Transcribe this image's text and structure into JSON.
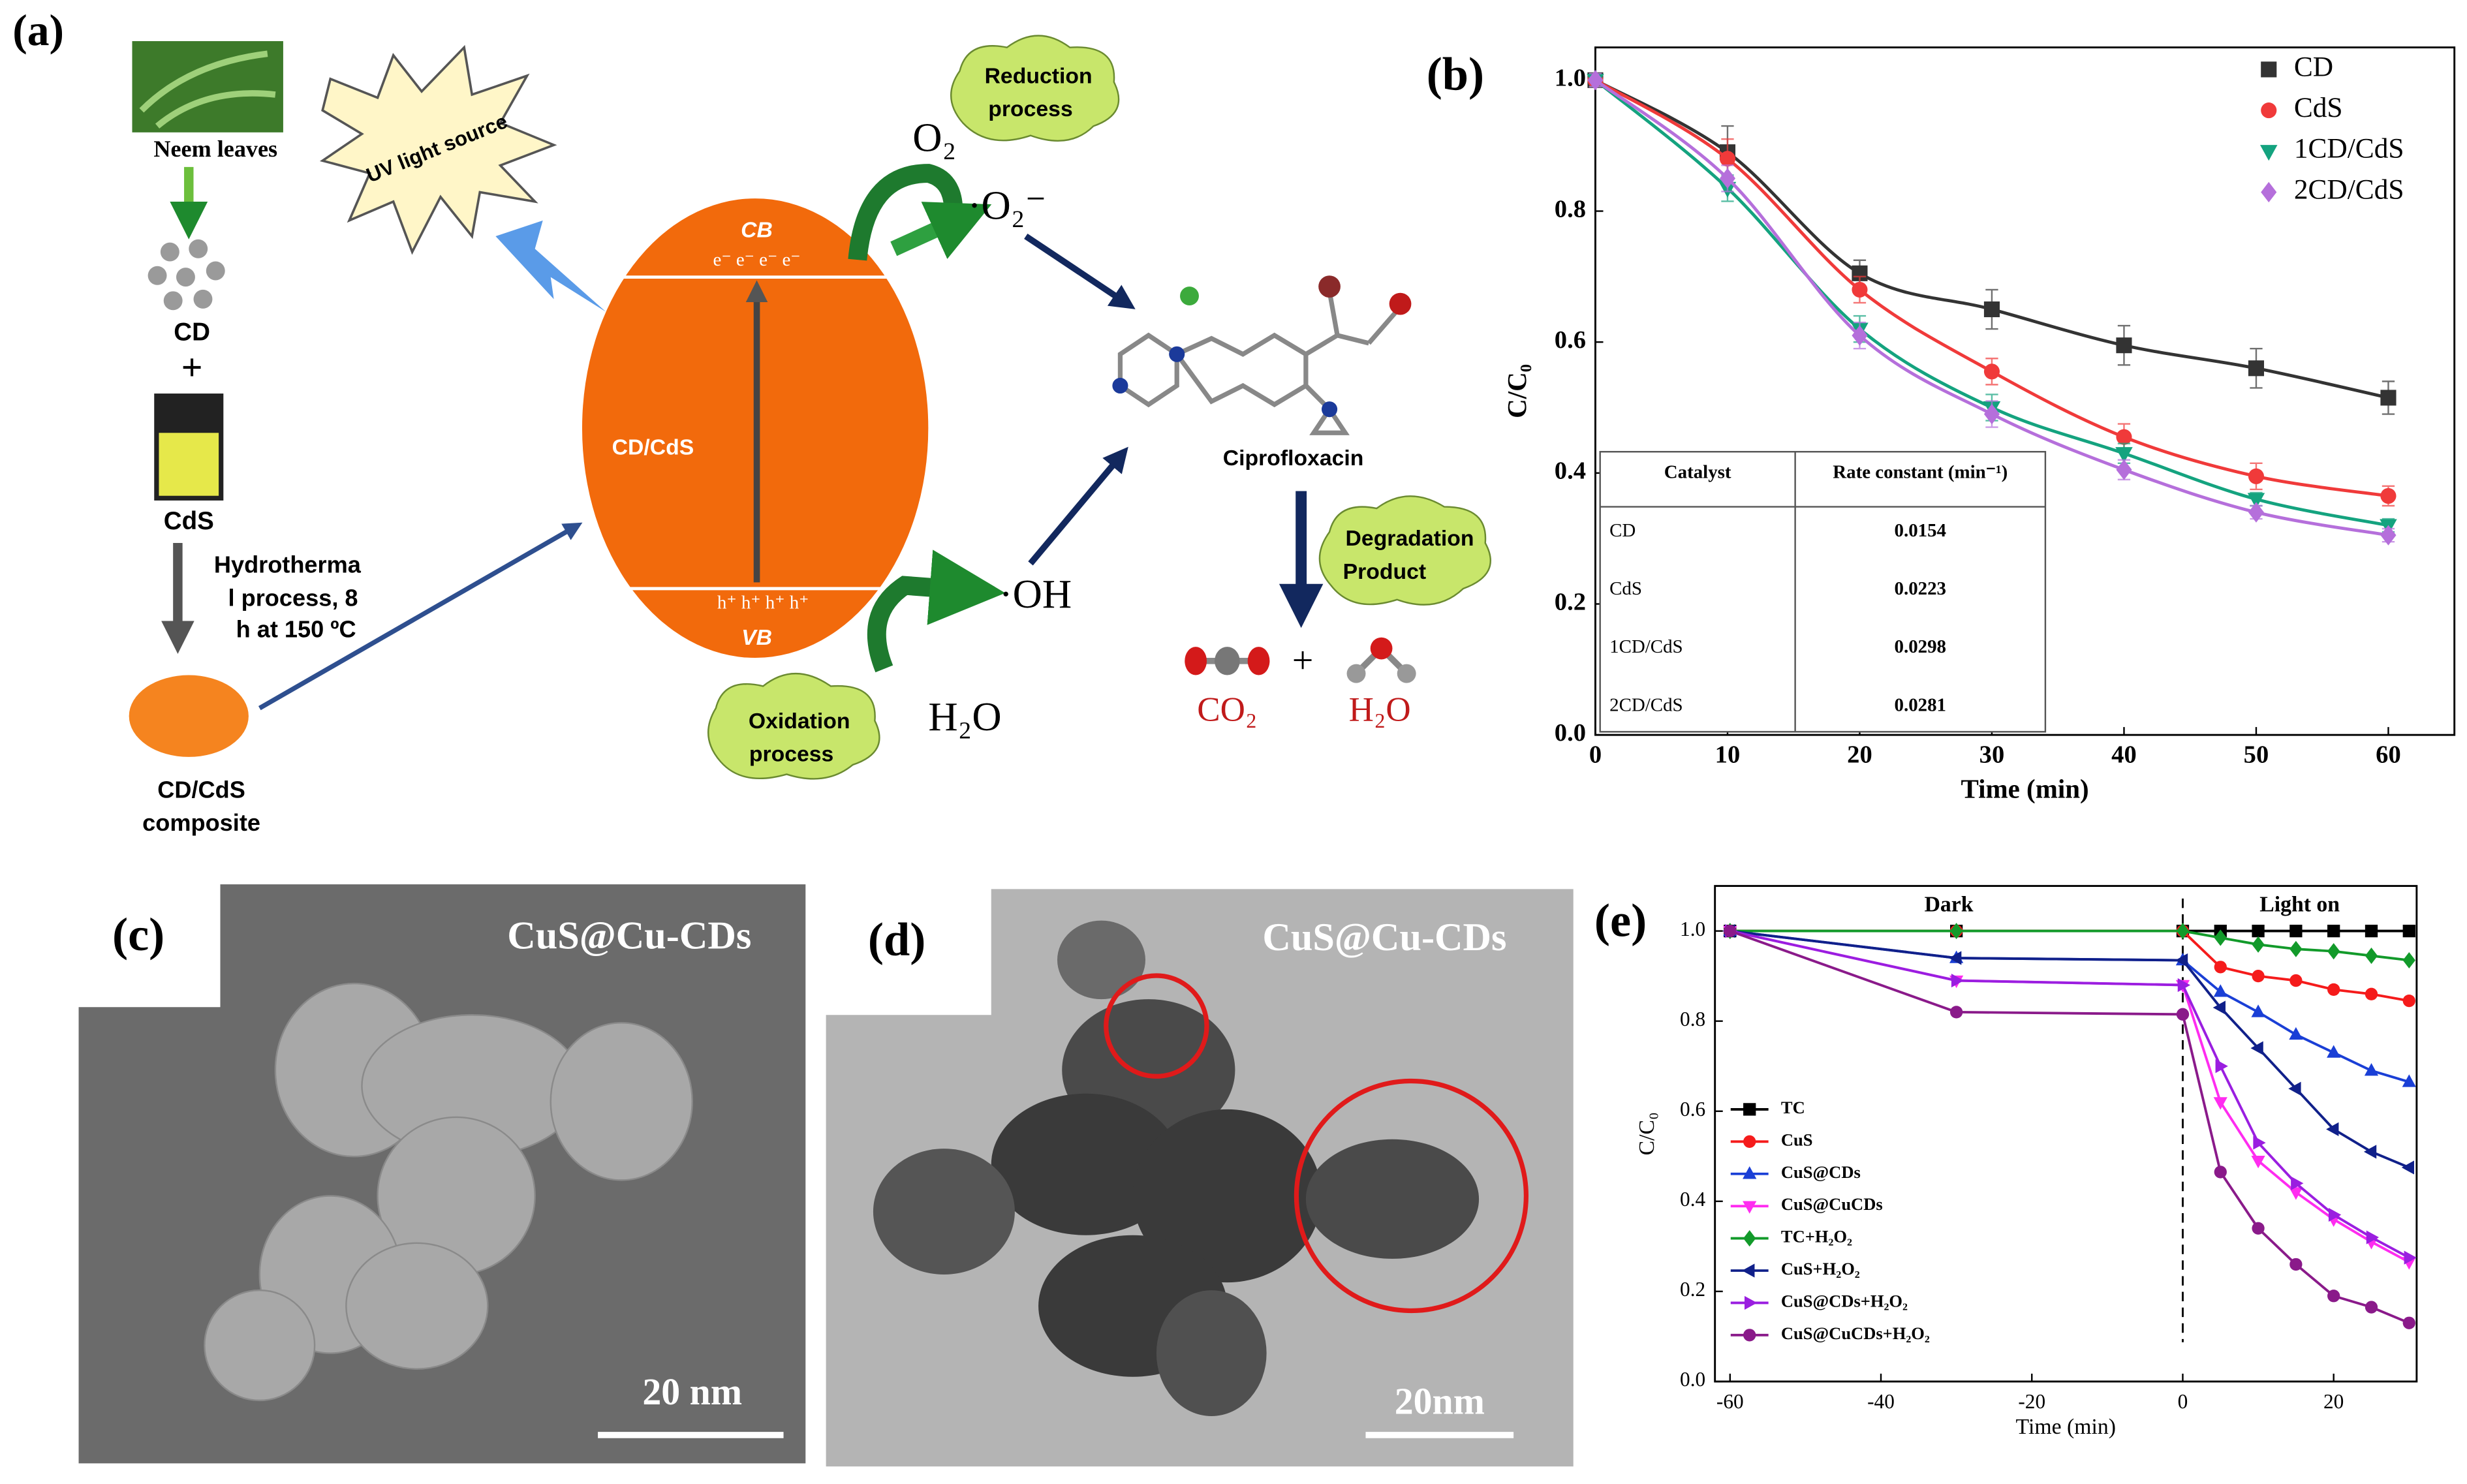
{
  "panel_a": {
    "label": "(a)",
    "neem": "Neem leaves",
    "uv": "UV light source",
    "cd": "CD",
    "plus1": "+",
    "cds": "CdS",
    "hydro": [
      "Hydrotherma",
      "l process, 8",
      "h at 150 ºC"
    ],
    "composite": [
      "CD/CdS",
      "composite"
    ],
    "cb": "CB",
    "electrons": "e⁻ e⁻ e⁻ e⁻",
    "core": "CD/CdS",
    "holes": "h⁺ h⁺ h⁺ h⁺",
    "vb": "VB",
    "o2": "O₂",
    "superoxide": "·O₂⁻",
    "oh": "·OH",
    "h2o": "H₂O",
    "reduction": [
      "Reduction",
      "process"
    ],
    "oxidation": [
      "Oxidation",
      "process"
    ],
    "cipro": "Ciprofloxacin",
    "degradation": [
      "Degradation",
      "Product"
    ],
    "co2": "CO₂",
    "plus2": "+",
    "h2o_product": "H₂O"
  },
  "panel_c": {
    "label": "(c)",
    "title": "CuS@Cu-CDs",
    "scale": "20 nm"
  },
  "panel_d": {
    "label": "(d)",
    "title": "CuS@Cu-CDs",
    "scale": "20nm"
  },
  "chart_data": [
    {
      "type": "scatter",
      "panel": "(b)",
      "xlabel": "Time (min)",
      "ylabel": "C/C₀",
      "line": "smooth",
      "legend": "upper right",
      "x": [
        0,
        10,
        20,
        30,
        40,
        50,
        60
      ],
      "xlim": [
        0,
        65
      ],
      "xticks": [
        0,
        10,
        20,
        30,
        40,
        50,
        60
      ],
      "ylim": [
        0,
        1.05
      ],
      "yticks": [
        {
          "value": 0,
          "label": "0.0"
        },
        {
          "value": 0.2,
          "label": "0.2"
        },
        {
          "value": 0.4,
          "label": "0.4"
        },
        {
          "value": 0.6,
          "label": "0.6"
        },
        {
          "value": 0.8,
          "label": "0.8"
        },
        {
          "value": 1,
          "label": "1.0"
        }
      ],
      "series": [
        {
          "name": "CD",
          "color": "#333333",
          "marker": "square",
          "values": [
            1.0,
            0.89,
            0.705,
            0.65,
            0.595,
            0.56,
            0.515
          ],
          "errors": [
            0.01,
            0.04,
            0.02,
            0.03,
            0.03,
            0.03,
            0.025
          ]
        },
        {
          "name": "CdS",
          "color": "#f03a3a",
          "marker": "circle",
          "values": [
            1.0,
            0.88,
            0.68,
            0.555,
            0.455,
            0.395,
            0.365
          ],
          "errors": [
            0.01,
            0.03,
            0.02,
            0.02,
            0.02,
            0.02,
            0.015
          ]
        },
        {
          "name": "1CD/CdS",
          "color": "#14a37f",
          "marker": "triangle-down",
          "values": [
            1.0,
            0.835,
            0.62,
            0.5,
            0.43,
            0.36,
            0.32
          ],
          "errors": [
            0.01,
            0.02,
            0.02,
            0.02,
            0.015,
            0.01,
            0.01
          ]
        },
        {
          "name": "2CD/CdS",
          "color": "#b56fdb",
          "marker": "diamond",
          "values": [
            1.0,
            0.85,
            0.61,
            0.49,
            0.405,
            0.34,
            0.305
          ],
          "errors": [
            0.01,
            0.02,
            0.02,
            0.02,
            0.015,
            0.01,
            0.01
          ]
        }
      ],
      "table": {
        "columns": [
          "Catalyst",
          "Rate constant (min⁻¹)"
        ],
        "rows": [
          [
            "CD",
            0.0154
          ],
          [
            "CdS",
            0.0223
          ],
          [
            "1CD/CdS",
            0.0298
          ],
          [
            "2CD/CdS",
            0.0281
          ]
        ]
      }
    },
    {
      "type": "line",
      "panel": "(e)",
      "xlabel": "Time (min)",
      "ylabel": "C/C₀",
      "line": "straight",
      "legend": "center left",
      "annotations": [
        "Dark",
        "Light on"
      ],
      "x": [
        -60,
        -30,
        0,
        5,
        10,
        15,
        20,
        25,
        30
      ],
      "xlim": [
        -62,
        31
      ],
      "xticks": [
        -60,
        -40,
        -20,
        0,
        20
      ],
      "ylim": [
        0,
        1.1
      ],
      "yticks": [
        {
          "value": 0,
          "label": "0.0"
        },
        {
          "value": 0.2,
          "label": "0.2"
        },
        {
          "value": 0.4,
          "label": "0.4"
        },
        {
          "value": 0.6,
          "label": "0.6"
        },
        {
          "value": 0.8,
          "label": "0.8"
        },
        {
          "value": 1,
          "label": "1.0"
        }
      ],
      "series": [
        {
          "name": "TC",
          "color": "#000000",
          "marker": "square",
          "values": [
            1,
            1,
            1,
            1,
            1,
            1,
            1,
            1,
            1
          ]
        },
        {
          "name": "CuS",
          "color": "#f51b1b",
          "marker": "circle",
          "values": [
            1,
            1,
            1,
            0.92,
            0.9,
            0.89,
            0.87,
            0.86,
            0.845
          ]
        },
        {
          "name": "CuS@CDs",
          "color": "#1a3fd6",
          "marker": "triangle-up",
          "values": [
            1,
            0.94,
            0.935,
            0.865,
            0.82,
            0.77,
            0.73,
            0.69,
            0.665
          ]
        },
        {
          "name": "CuS@CuCDs",
          "color": "#ff2cf0",
          "marker": "triangle-down",
          "values": [
            1,
            0.89,
            0.88,
            0.62,
            0.49,
            0.42,
            0.36,
            0.31,
            0.265
          ]
        },
        {
          "name": "TC+H₂O₂",
          "color": "#129a2a",
          "marker": "diamond",
          "values": [
            1,
            1,
            1,
            0.985,
            0.97,
            0.96,
            0.955,
            0.945,
            0.935
          ]
        },
        {
          "name": "CuS+H₂O₂",
          "color": "#10208a",
          "marker": "triangle-left",
          "values": [
            1,
            0.94,
            0.935,
            0.83,
            0.74,
            0.65,
            0.56,
            0.51,
            0.475
          ]
        },
        {
          "name": "CuS@CDs+H₂O₂",
          "color": "#9a1ee0",
          "marker": "triangle-right",
          "values": [
            1,
            0.89,
            0.88,
            0.7,
            0.53,
            0.44,
            0.37,
            0.32,
            0.275
          ]
        },
        {
          "name": "CuS@CuCDs+H₂O₂",
          "color": "#8a1a8a",
          "marker": "circle",
          "values": [
            1,
            0.82,
            0.815,
            0.465,
            0.34,
            0.26,
            0.19,
            0.165,
            0.13
          ]
        }
      ]
    }
  ]
}
